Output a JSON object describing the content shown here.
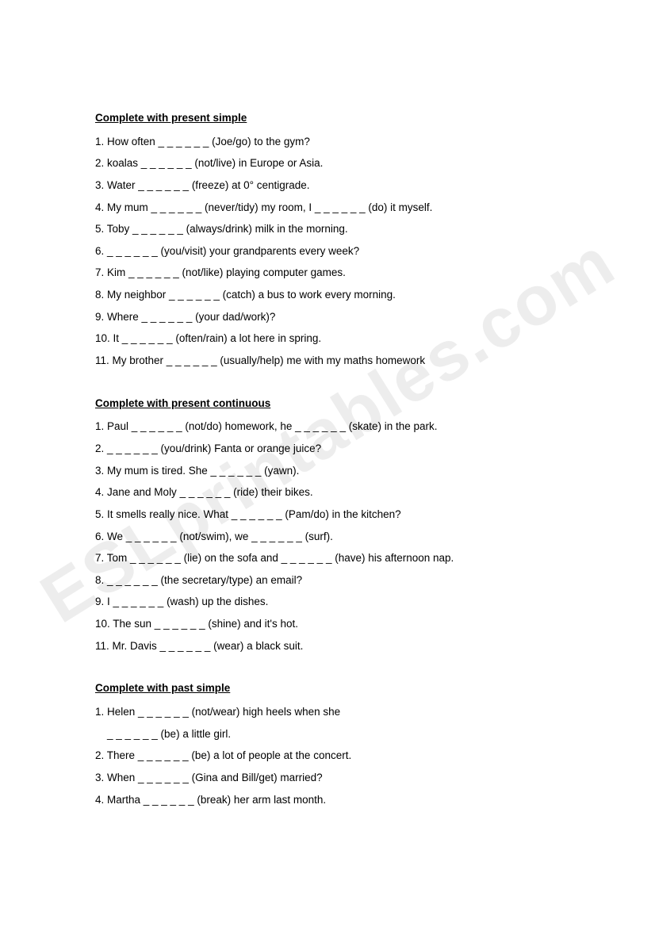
{
  "watermark": "ESLprintables.com",
  "sections": [
    {
      "title": "Complete with present simple",
      "items": [
        "1. How often _ _ _ _ _ _ (Joe/go) to the gym?",
        "2. koalas _ _ _ _ _ _ (not/live) in Europe or Asia.",
        "3. Water _ _ _ _ _ _ (freeze) at 0° centigrade.",
        "4. My mum _ _ _ _ _ _ (never/tidy) my room, I _ _ _ _ _ _ (do) it myself.",
        "5. Toby _ _ _ _ _ _ (always/drink) milk in the morning.",
        "6. _ _ _ _ _ _  (you/visit) your grandparents every week?",
        "7. Kim _ _ _ _ _ _ (not/like) playing computer games.",
        "8. My neighbor _ _ _ _ _ _  (catch) a bus to work every morning.",
        "9. Where _ _ _ _ _ _ (your dad/work)?",
        "10. It _ _ _ _ _ _ (often/rain) a lot here in spring.",
        "11. My brother _ _ _ _ _ _ (usually/help) me with my maths homework"
      ]
    },
    {
      "title": "Complete with present continuous",
      "items": [
        "1. Paul _ _ _ _ _ _ (not/do) homework, he _ _ _ _ _ _  (skate) in the park.",
        "2. _ _ _ _ _ _ (you/drink) Fanta or orange juice?",
        "3. My mum is tired. She _ _ _ _ _ _  (yawn).",
        "4. Jane and Moly _ _ _ _ _ _ (ride) their bikes.",
        "5. It smells really nice. What _ _ _ _ _ _ (Pam/do) in the kitchen?",
        "6. We _ _ _ _ _ _ (not/swim), we _ _ _ _ _ _ (surf).",
        "7. Tom _ _ _ _ _ _ (lie) on the sofa and _ _ _ _ _ _ (have) his afternoon nap.",
        "8. _ _ _ _ _ _ (the secretary/type) an email?",
        "9. I _ _ _ _ _ _ (wash) up the dishes.",
        "10. The sun _ _ _ _ _ _ (shine) and it's hot.",
        "11. Mr. Davis _ _ _ _ _ _ (wear) a black suit."
      ]
    },
    {
      "title": "Complete with past simple",
      "items": [
        "1. Helen _ _ _ _ _ _ (not/wear) high heels when she",
        "    _ _ _ _ _ _ (be) a little girl.",
        "2. There _ _ _ _ _ _  (be) a lot of people at the concert.",
        "3. When _ _ _ _ _ _ (Gina and Bill/get) married?",
        "4. Martha _ _ _ _ _ _ (break) her arm last month."
      ]
    }
  ]
}
